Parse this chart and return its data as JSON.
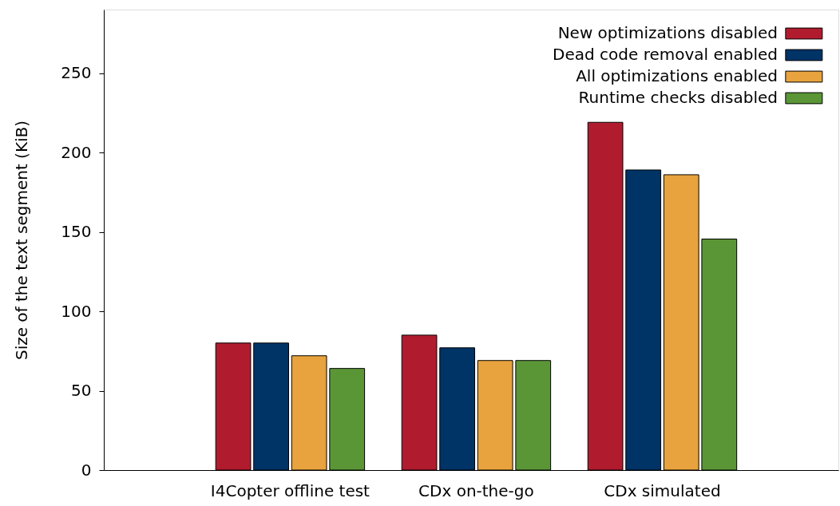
{
  "chart_data": {
    "type": "bar",
    "ylabel": "Size of the text segment (KiB)",
    "categories": [
      "I4Copter offline test",
      "CDx on-the-go",
      "CDx simulated"
    ],
    "series": [
      {
        "name": "New optimizations disabled",
        "color": "#b01c2e",
        "values": [
          80,
          85,
          219
        ]
      },
      {
        "name": "Dead code removal enabled",
        "color": "#003366",
        "values": [
          80,
          77,
          189
        ]
      },
      {
        "name": "All optimizations enabled",
        "color": "#e8a33e",
        "values": [
          72,
          69,
          186
        ]
      },
      {
        "name": "Runtime checks disabled",
        "color": "#5a9636",
        "values": [
          64,
          69,
          145.5
        ]
      }
    ],
    "ylim": [
      0,
      290
    ],
    "yticks": [
      0,
      50,
      100,
      150,
      200,
      250
    ],
    "legend": "top right"
  }
}
